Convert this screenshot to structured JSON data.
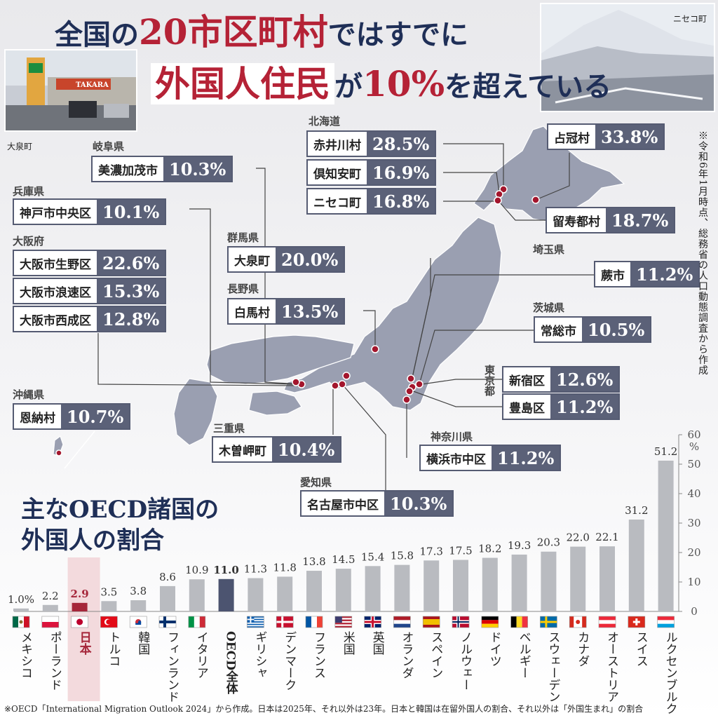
{
  "title": {
    "line1_pre": "全国の",
    "line1_num": "20市区町村",
    "line1_post": "ではすでに",
    "line2_a": "外国人住民",
    "line2_b": "が",
    "line2_c": "10%",
    "line2_d": "を超えている"
  },
  "photos": {
    "left_caption": "大泉町",
    "right_caption": "ニセコ町",
    "sign_text": "TAKARA"
  },
  "side_note": "※令和6年1月時点、総務省の人口動態調査から作成",
  "prefectures": {
    "hokkaido": "北海道",
    "gifu": "岐阜県",
    "hyogo": "兵庫県",
    "osaka": "大阪府",
    "gunma": "群馬県",
    "nagano": "長野県",
    "saitama": "埼玉県",
    "ibaraki": "茨城県",
    "tokyo": "東京都",
    "okinawa": "沖縄県",
    "mie": "三重県",
    "kanagawa": "神奈川県",
    "aichi": "愛知県"
  },
  "municipalities": [
    {
      "name": "赤井川村",
      "value": "28.5%"
    },
    {
      "name": "倶知安町",
      "value": "16.9%"
    },
    {
      "name": "ニセコ町",
      "value": "16.8%"
    },
    {
      "name": "占冠村",
      "value": "33.8%"
    },
    {
      "name": "留寿都村",
      "value": "18.7%"
    },
    {
      "name": "美濃加茂市",
      "value": "10.3%"
    },
    {
      "name": "神戸市中央区",
      "value": "10.1%"
    },
    {
      "name": "大阪市生野区",
      "value": "22.6%"
    },
    {
      "name": "大阪市浪速区",
      "value": "15.3%"
    },
    {
      "name": "大阪市西成区",
      "value": "12.8%"
    },
    {
      "name": "大泉町",
      "value": "20.0%"
    },
    {
      "name": "白馬村",
      "value": "13.5%"
    },
    {
      "name": "蕨市",
      "value": "11.2%"
    },
    {
      "name": "常総市",
      "value": "10.5%"
    },
    {
      "name": "新宿区",
      "value": "12.6%"
    },
    {
      "name": "豊島区",
      "value": "11.2%"
    },
    {
      "name": "恩納村",
      "value": "10.7%"
    },
    {
      "name": "木曽岬町",
      "value": "10.4%"
    },
    {
      "name": "横浜市中区",
      "value": "11.2%"
    },
    {
      "name": "名古屋市中区",
      "value": "10.3%"
    }
  ],
  "oecd_title_line1": "主なOECD諸国の",
  "oecd_title_line2": "外国人の割合",
  "chart_data": {
    "type": "bar",
    "title": "主なOECD諸国の外国人の割合",
    "ylabel": "%",
    "ylim": [
      0,
      60
    ],
    "yticks": [
      0,
      10,
      20,
      30,
      40,
      50,
      60
    ],
    "categories": [
      "メキシコ",
      "ポーランド",
      "日本",
      "トルコ",
      "韓国",
      "フィンランド",
      "イタリア",
      "OECD全体",
      "ギリシャ",
      "デンマーク",
      "フランス",
      "米国",
      "英国",
      "オランダ",
      "スペイン",
      "ノルウェー",
      "ドイツ",
      "ベルギー",
      "スウェーデン",
      "カナダ",
      "オーストリア",
      "スイス",
      "ルクセンブルク"
    ],
    "values": [
      1.0,
      2.2,
      2.9,
      3.5,
      3.8,
      8.6,
      10.9,
      11.0,
      11.3,
      11.8,
      13.8,
      14.5,
      15.4,
      15.8,
      17.3,
      17.5,
      18.2,
      19.3,
      20.3,
      22.0,
      22.1,
      31.2,
      51.2
    ],
    "value_labels": [
      "1.0%",
      "2.2",
      "2.9",
      "3.5",
      "3.8",
      "8.6",
      "10.9",
      "11.0",
      "11.3",
      "11.8",
      "13.8",
      "14.5",
      "15.4",
      "15.8",
      "17.3",
      "17.5",
      "18.2",
      "19.3",
      "20.3",
      "22.0",
      "22.1",
      "31.2",
      "51.2"
    ],
    "colors": {
      "bar": "#b9bbc0",
      "japan": "#a5263a",
      "oecd": "#4c5470",
      "axis": "#888888"
    },
    "flags": [
      "flag-mexico",
      "flag-poland",
      "flag-japan",
      "flag-turkey",
      "flag-korea",
      "flag-finland",
      "flag-italy",
      "none",
      "flag-greece",
      "flag-denmark",
      "flag-france",
      "flag-usa",
      "flag-uk",
      "flag-netherlands",
      "flag-spain",
      "flag-norway",
      "flag-germany",
      "flag-belgium",
      "flag-sweden",
      "flag-canada",
      "flag-austria",
      "flag-switzerland",
      "flag-luxembourg"
    ],
    "grid": false
  },
  "footnote": "※OECD「International Migration Outlook 2024」から作成。日本は2025年、それ以外は23年。日本と韓国は在留外国人の割合、それ以外は「外国生まれ」の割合"
}
